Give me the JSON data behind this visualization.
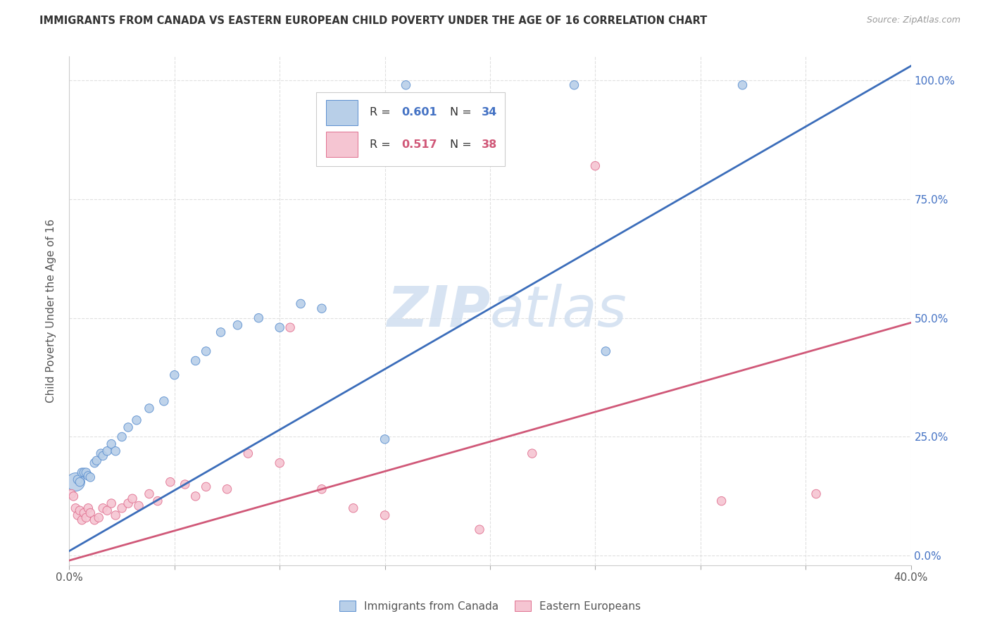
{
  "title": "IMMIGRANTS FROM CANADA VS EASTERN EUROPEAN CHILD POVERTY UNDER THE AGE OF 16 CORRELATION CHART",
  "source": "Source: ZipAtlas.com",
  "ylabel": "Child Poverty Under the Age of 16",
  "yaxis_labels": [
    "0.0%",
    "25.0%",
    "50.0%",
    "75.0%",
    "100.0%"
  ],
  "legend_label1": "Immigrants from Canada",
  "legend_label2": "Eastern Europeans",
  "r1": "0.601",
  "n1": "34",
  "r2": "0.517",
  "n2": "38",
  "color_blue_fill": "#b8cfe8",
  "color_blue_edge": "#5b8fcf",
  "color_blue_line": "#3b6dba",
  "color_blue_text": "#4472c4",
  "color_pink_fill": "#f5c5d2",
  "color_pink_edge": "#e07090",
  "color_pink_line": "#d05878",
  "color_pink_text": "#d05878",
  "watermark_color": "#d0dff0",
  "blue_line_slope": 2.55,
  "blue_line_intercept": 0.01,
  "pink_line_slope": 1.25,
  "pink_line_intercept": -0.01,
  "blue_x": [
    0.003,
    0.004,
    0.005,
    0.006,
    0.007,
    0.008,
    0.009,
    0.01,
    0.012,
    0.013,
    0.015,
    0.016,
    0.018,
    0.02,
    0.022,
    0.025,
    0.028,
    0.032,
    0.038,
    0.045,
    0.05,
    0.06,
    0.065,
    0.072,
    0.08,
    0.09,
    0.1,
    0.11,
    0.12,
    0.15,
    0.16,
    0.24,
    0.255,
    0.32
  ],
  "blue_y": [
    0.155,
    0.16,
    0.155,
    0.175,
    0.175,
    0.175,
    0.168,
    0.165,
    0.195,
    0.2,
    0.215,
    0.21,
    0.22,
    0.235,
    0.22,
    0.25,
    0.27,
    0.285,
    0.31,
    0.325,
    0.38,
    0.41,
    0.43,
    0.47,
    0.485,
    0.5,
    0.48,
    0.53,
    0.52,
    0.245,
    0.99,
    0.99,
    0.43,
    0.99
  ],
  "blue_sizes": [
    350,
    80,
    80,
    80,
    80,
    80,
    80,
    80,
    80,
    80,
    80,
    80,
    80,
    80,
    80,
    80,
    80,
    80,
    80,
    80,
    80,
    80,
    80,
    80,
    80,
    80,
    80,
    80,
    80,
    80,
    80,
    80,
    80,
    80
  ],
  "pink_x": [
    0.001,
    0.002,
    0.003,
    0.004,
    0.005,
    0.006,
    0.007,
    0.008,
    0.009,
    0.01,
    0.012,
    0.014,
    0.016,
    0.018,
    0.02,
    0.022,
    0.025,
    0.028,
    0.03,
    0.033,
    0.038,
    0.042,
    0.048,
    0.055,
    0.06,
    0.065,
    0.075,
    0.085,
    0.1,
    0.105,
    0.12,
    0.135,
    0.15,
    0.195,
    0.22,
    0.25,
    0.31,
    0.355
  ],
  "pink_y": [
    0.13,
    0.125,
    0.1,
    0.085,
    0.095,
    0.075,
    0.09,
    0.08,
    0.1,
    0.09,
    0.075,
    0.08,
    0.1,
    0.095,
    0.11,
    0.085,
    0.1,
    0.11,
    0.12,
    0.105,
    0.13,
    0.115,
    0.155,
    0.15,
    0.125,
    0.145,
    0.14,
    0.215,
    0.195,
    0.48,
    0.14,
    0.1,
    0.085,
    0.055,
    0.215,
    0.82,
    0.115,
    0.13
  ],
  "pink_sizes": [
    80,
    80,
    80,
    80,
    80,
    80,
    80,
    80,
    80,
    80,
    80,
    80,
    80,
    80,
    80,
    80,
    80,
    80,
    80,
    80,
    80,
    80,
    80,
    80,
    80,
    80,
    80,
    80,
    80,
    80,
    80,
    80,
    80,
    80,
    80,
    80,
    80,
    80
  ],
  "xlim": [
    0.0,
    0.4
  ],
  "ylim": [
    -0.02,
    1.05
  ],
  "background": "#ffffff",
  "grid_color": "#e0e0e0"
}
